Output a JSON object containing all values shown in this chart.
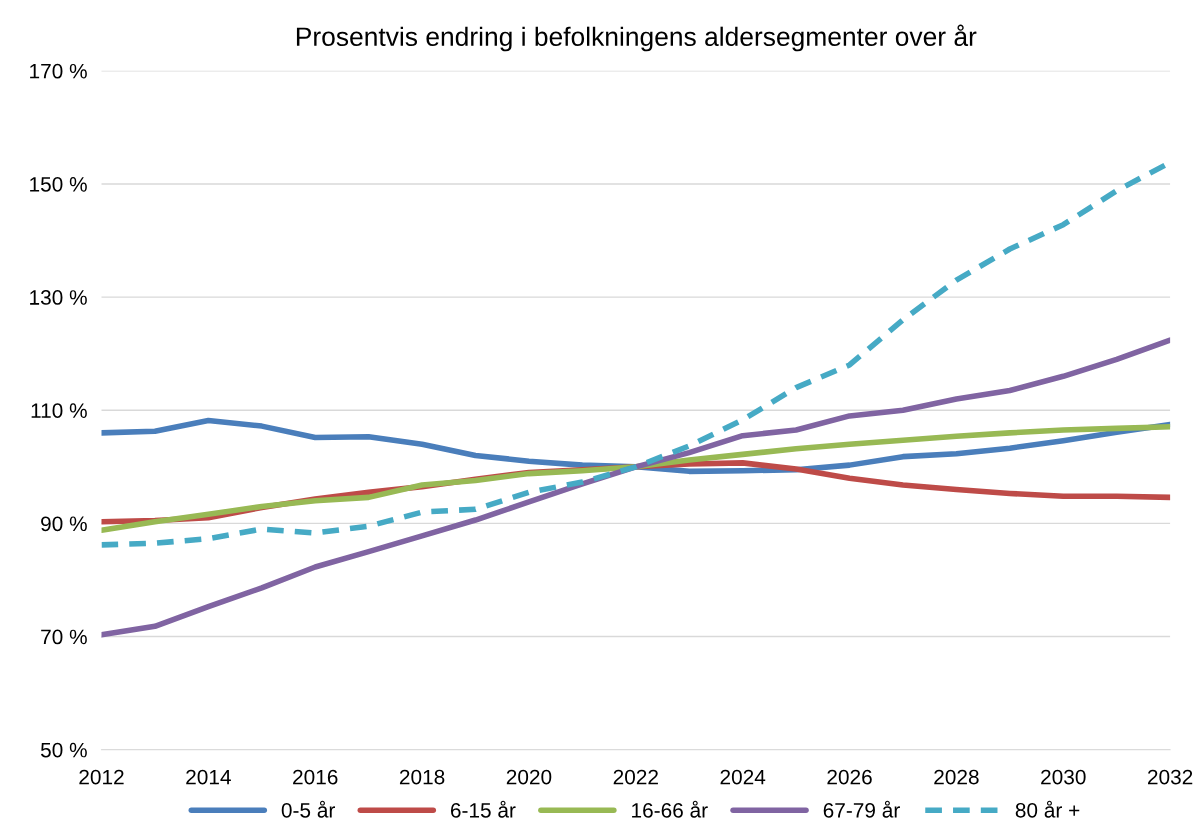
{
  "chart_data": {
    "type": "line",
    "title": "Prosentvis endring i befolkningens aldersegmenter over år",
    "x": [
      2012,
      2013,
      2014,
      2015,
      2016,
      2017,
      2018,
      2019,
      2020,
      2021,
      2022,
      2023,
      2024,
      2025,
      2026,
      2027,
      2028,
      2029,
      2030,
      2031,
      2032
    ],
    "series": [
      {
        "name": "0-5 år",
        "color": "#4a7ebb",
        "line_style": "solid",
        "values": [
          106.0,
          106.3,
          108.2,
          107.2,
          105.2,
          105.3,
          104.0,
          102.0,
          101.0,
          100.3,
          100.0,
          99.2,
          99.3,
          99.5,
          100.3,
          101.8,
          102.3,
          103.3,
          104.6,
          106.1,
          107.5
        ]
      },
      {
        "name": "6-15 år",
        "color": "#be4b48",
        "line_style": "solid",
        "values": [
          90.3,
          90.5,
          91.0,
          92.8,
          94.3,
          95.5,
          96.5,
          97.8,
          99.0,
          99.5,
          100.0,
          100.5,
          100.7,
          99.6,
          98.0,
          96.8,
          96.0,
          95.3,
          94.8,
          94.8,
          94.6
        ]
      },
      {
        "name": "16-66 år",
        "color": "#98b954",
        "line_style": "solid",
        "values": [
          88.8,
          90.3,
          91.6,
          93.0,
          94.0,
          94.6,
          96.8,
          97.6,
          98.8,
          99.3,
          100.0,
          101.2,
          102.2,
          103.2,
          104.0,
          104.7,
          105.4,
          106.0,
          106.5,
          106.8,
          107.1
        ]
      },
      {
        "name": "67-79 år",
        "color": "#8064a2",
        "line_style": "solid",
        "values": [
          70.3,
          71.8,
          75.3,
          78.6,
          82.3,
          85.0,
          87.8,
          90.6,
          93.8,
          97.0,
          100.0,
          102.5,
          105.5,
          106.5,
          109.0,
          110.0,
          112.0,
          113.5,
          116.0,
          119.0,
          122.4
        ]
      },
      {
        "name": "80 år +",
        "color": "#46aac5",
        "line_style": "dashed",
        "values": [
          86.2,
          86.5,
          87.3,
          89.0,
          88.3,
          89.5,
          92.0,
          92.5,
          95.5,
          97.3,
          100.0,
          103.7,
          108.3,
          114.0,
          118.0,
          126.0,
          133.0,
          138.5,
          142.8,
          148.8,
          153.8
        ]
      }
    ],
    "xlim": [
      2012,
      2032
    ],
    "xticks": [
      2012,
      2014,
      2016,
      2018,
      2020,
      2022,
      2024,
      2026,
      2028,
      2030,
      2032
    ],
    "ylim": [
      50,
      170
    ],
    "yticks": [
      {
        "value": 50,
        "label": "50 %"
      },
      {
        "value": 70,
        "label": "70 %"
      },
      {
        "value": 90,
        "label": "90 %"
      },
      {
        "value": 110,
        "label": "110 %"
      },
      {
        "value": 130,
        "label": "130 %"
      },
      {
        "value": 150,
        "label": "150 %"
      },
      {
        "value": 170,
        "label": "170 %"
      }
    ],
    "grid": "y",
    "legend": "bottom"
  }
}
